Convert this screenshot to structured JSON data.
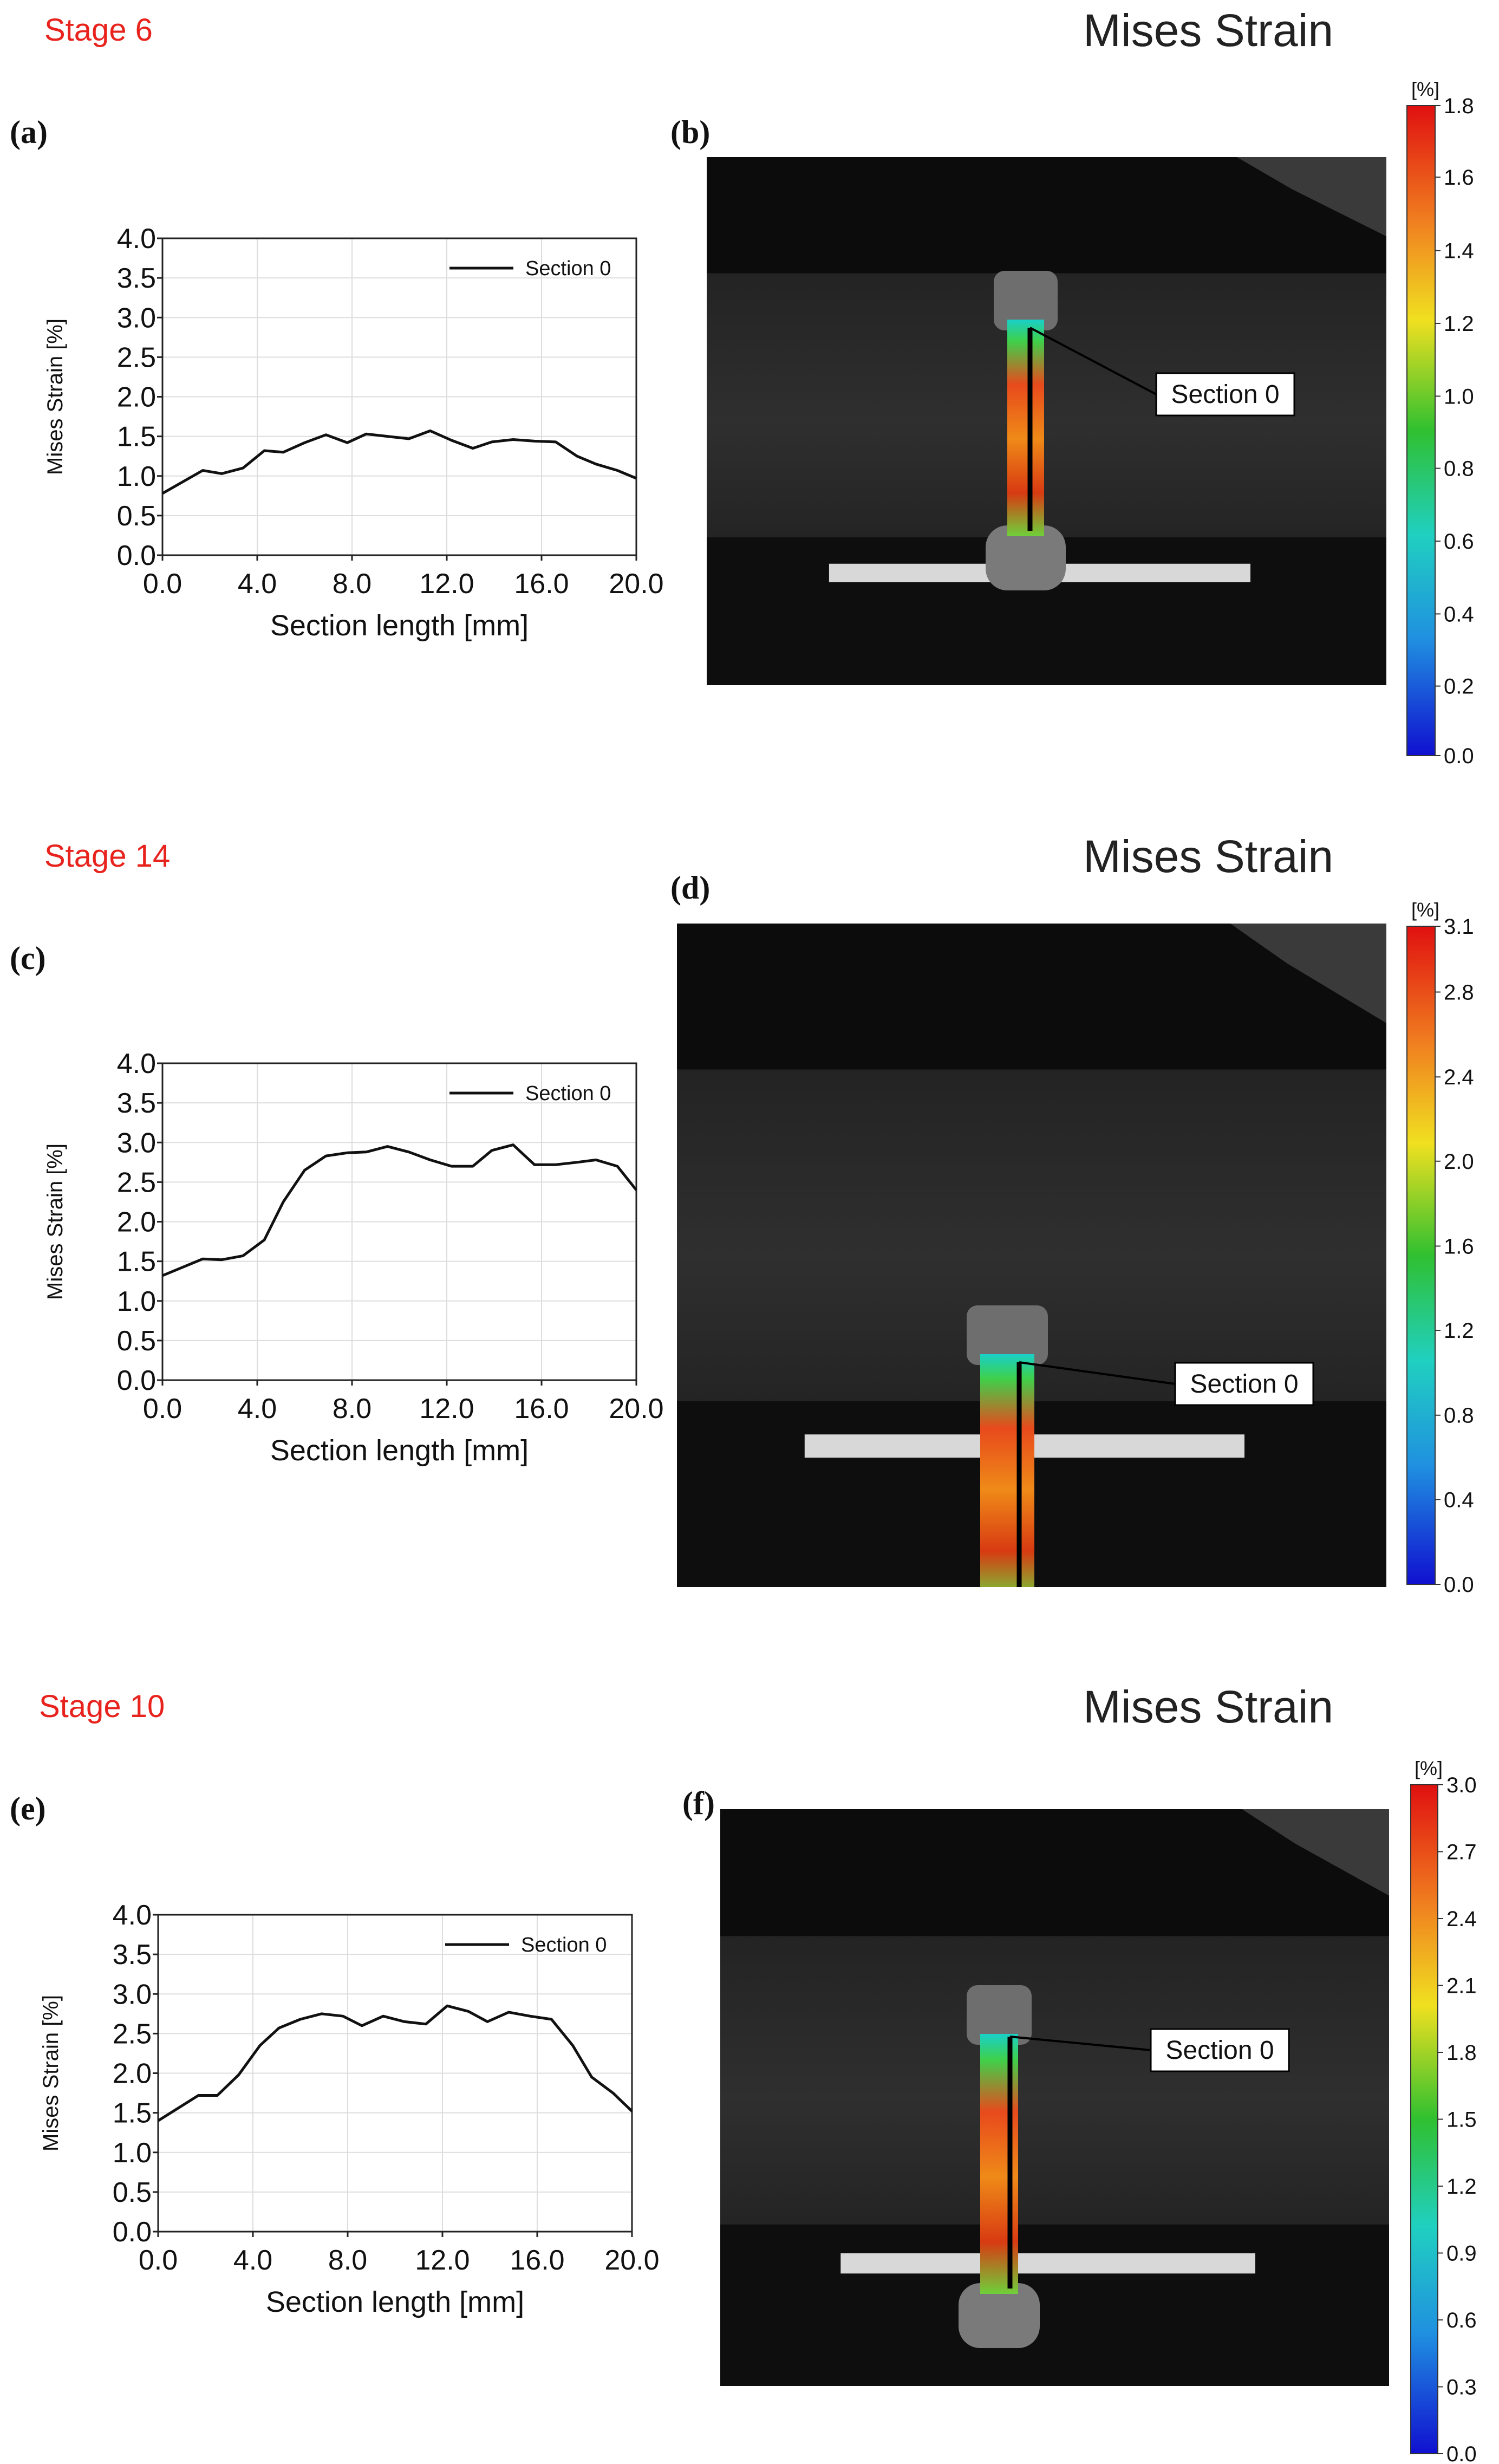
{
  "panels": [
    {
      "stage_label": "Stage 6",
      "title": "Mises Strain",
      "plot_label": "(a)",
      "image_label": "(b)",
      "section_callout": "Section 0",
      "colorbar": {
        "unit": "[%]",
        "ticks": [
          "1.8",
          "1.6",
          "1.4",
          "1.2",
          "1.0",
          "0.8",
          "0.6",
          "0.4",
          "0.2",
          "0.0"
        ]
      }
    },
    {
      "stage_label": "Stage 14",
      "title": "Mises Strain",
      "plot_label": "(c)",
      "image_label": "(d)",
      "section_callout": "Section 0",
      "colorbar": {
        "unit": "[%]",
        "ticks": [
          "3.1",
          "2.8",
          "2.4",
          "2.0",
          "1.6",
          "1.2",
          "0.8",
          "0.4",
          "0.0"
        ]
      }
    },
    {
      "stage_label": "Stage 10",
      "title": "Mises Strain",
      "plot_label": "(e)",
      "image_label": "(f)",
      "section_callout": "Section 0",
      "colorbar": {
        "unit": "[%]",
        "ticks": [
          "3.0",
          "2.7",
          "2.4",
          "2.1",
          "1.8",
          "1.5",
          "1.2",
          "0.9",
          "0.6",
          "0.3",
          "0.0"
        ]
      }
    }
  ],
  "chart_data": [
    {
      "type": "line",
      "xlabel": "Section length [mm]",
      "ylabel": "Mises Strain [%]",
      "xlim": [
        0,
        20
      ],
      "ylim": [
        0,
        4
      ],
      "xticks": [
        "0.0",
        "4.0",
        "8.0",
        "12.0",
        "16.0",
        "20.0"
      ],
      "yticks": [
        "0.0",
        "0.5",
        "1.0",
        "1.5",
        "2.0",
        "2.5",
        "3.0",
        "3.5",
        "4.0"
      ],
      "grid": true,
      "legend_position": "top-right",
      "series": [
        {
          "name": "Section 0",
          "x": [
            0,
            1.7,
            2.5,
            3.4,
            4.3,
            5.1,
            6,
            6.9,
            7.8,
            8.6,
            9.5,
            10.4,
            11.3,
            12.2,
            13.1,
            13.9,
            14.8,
            15.7,
            16.6,
            17.5,
            18.3,
            19.2,
            20
          ],
          "y": [
            0.78,
            1.07,
            1.03,
            1.1,
            1.32,
            1.3,
            1.42,
            1.52,
            1.42,
            1.53,
            1.5,
            1.47,
            1.57,
            1.45,
            1.35,
            1.43,
            1.46,
            1.44,
            1.43,
            1.25,
            1.15,
            1.07,
            0.97
          ]
        }
      ]
    },
    {
      "type": "line",
      "xlabel": "Section length [mm]",
      "ylabel": "Mises Strain [%]",
      "xlim": [
        0,
        20
      ],
      "ylim": [
        0,
        4
      ],
      "xticks": [
        "0.0",
        "4.0",
        "8.0",
        "12.0",
        "16.0",
        "20.0"
      ],
      "yticks": [
        "0.0",
        "0.5",
        "1.0",
        "1.5",
        "2.0",
        "2.5",
        "3.0",
        "3.5",
        "4.0"
      ],
      "grid": true,
      "legend_position": "top-right",
      "series": [
        {
          "name": "Section 0",
          "x": [
            0,
            1.7,
            2.5,
            3.4,
            4.3,
            5.1,
            6,
            6.9,
            7.8,
            8.6,
            9.5,
            10.4,
            11.3,
            12.2,
            13.1,
            13.9,
            14.8,
            15.7,
            16.6,
            17.5,
            18.3,
            19.2,
            20
          ],
          "y": [
            1.32,
            1.53,
            1.52,
            1.57,
            1.77,
            2.25,
            2.65,
            2.83,
            2.87,
            2.88,
            2.95,
            2.88,
            2.78,
            2.7,
            2.7,
            2.9,
            2.97,
            2.72,
            2.72,
            2.75,
            2.78,
            2.7,
            2.4
          ]
        }
      ]
    },
    {
      "type": "line",
      "xlabel": "Section length [mm]",
      "ylabel": "Mises Strain [%]",
      "xlim": [
        0,
        20
      ],
      "ylim": [
        0,
        4
      ],
      "xticks": [
        "0.0",
        "4.0",
        "8.0",
        "12.0",
        "16.0",
        "20.0"
      ],
      "yticks": [
        "0.0",
        "0.5",
        "1.0",
        "1.5",
        "2.0",
        "2.5",
        "3.0",
        "3.5",
        "4.0"
      ],
      "grid": true,
      "legend_position": "top-right",
      "series": [
        {
          "name": "Section 0",
          "x": [
            0,
            1.7,
            2.5,
            3.4,
            4.3,
            5.1,
            6,
            6.9,
            7.8,
            8.6,
            9.5,
            10.4,
            11.3,
            12.2,
            13.1,
            13.9,
            14.8,
            15.7,
            16.6,
            17.5,
            18.3,
            19.2,
            20
          ],
          "y": [
            1.4,
            1.72,
            1.72,
            1.98,
            2.35,
            2.57,
            2.68,
            2.75,
            2.72,
            2.6,
            2.72,
            2.65,
            2.62,
            2.85,
            2.78,
            2.65,
            2.77,
            2.72,
            2.68,
            2.35,
            1.95,
            1.75,
            1.52
          ]
        }
      ]
    }
  ]
}
